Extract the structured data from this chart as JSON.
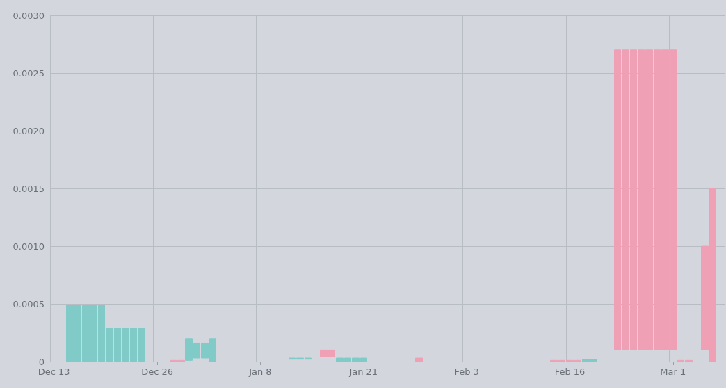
{
  "chart_data": {
    "type": "candlestick",
    "categories": [
      "Dec 13",
      null,
      null,
      null,
      null,
      null,
      null,
      null,
      null,
      null,
      null,
      null,
      null,
      "Dec 26",
      null,
      null,
      null,
      null,
      null,
      null,
      null,
      null,
      null,
      null,
      null,
      null,
      "Jan 8",
      null,
      null,
      null,
      null,
      null,
      null,
      null,
      null,
      null,
      null,
      null,
      null,
      "Jan 21",
      null,
      null,
      null,
      null,
      null,
      null,
      null,
      null,
      null,
      null,
      null,
      null,
      "Feb 3",
      null,
      null,
      null,
      null,
      null,
      null,
      null,
      null,
      null,
      null,
      null,
      null,
      "Feb 16",
      null,
      null,
      null,
      null,
      null,
      null,
      null,
      null,
      null,
      null,
      null,
      null,
      "Mar 1",
      null,
      null,
      null,
      null,
      null,
      null
    ],
    "ohlc": [
      null,
      null,
      [
        0,
        0.00049,
        0,
        0.00049
      ],
      [
        0,
        0.00049,
        0,
        0.00049
      ],
      [
        0,
        0.00049,
        0,
        0.00049
      ],
      [
        0,
        0.00049,
        0,
        0.00049
      ],
      [
        0,
        0.00049,
        0,
        0.00049
      ],
      [
        0,
        0.00029,
        0,
        0.00029
      ],
      [
        0,
        0.00029,
        0,
        0.00029
      ],
      [
        0,
        0.00029,
        0,
        0.00029
      ],
      [
        0,
        0.00029,
        0,
        0.00029
      ],
      [
        0,
        0.00029,
        0,
        0.00029
      ],
      null,
      null,
      null,
      [
        1e-05,
        1e-05,
        0,
        0
      ],
      [
        1e-05,
        1e-05,
        0,
        0
      ],
      [
        1e-05,
        0.0002,
        1e-05,
        0.0002
      ],
      [
        3e-05,
        0.00016,
        3e-05,
        0.00016
      ],
      [
        3e-05,
        0.00016,
        3e-05,
        0.00016
      ],
      [
        0,
        0.0002,
        0,
        0.0002
      ],
      null,
      null,
      null,
      null,
      null,
      null,
      null,
      null,
      null,
      [
        2e-05,
        3e-05,
        2e-05,
        3e-05
      ],
      [
        2e-05,
        3e-05,
        2e-05,
        3e-05
      ],
      [
        2e-05,
        3e-05,
        2e-05,
        3e-05
      ],
      null,
      [
        0.0001,
        0.0001,
        4e-05,
        4e-05
      ],
      [
        0.0001,
        0.0001,
        4e-05,
        4e-05
      ],
      [
        0,
        3e-05,
        0,
        3e-05
      ],
      [
        0,
        3e-05,
        0,
        3e-05
      ],
      [
        0,
        3e-05,
        0,
        3e-05
      ],
      [
        0,
        3e-05,
        0,
        3e-05
      ],
      null,
      null,
      null,
      null,
      null,
      null,
      [
        3e-05,
        3e-05,
        0,
        0
      ],
      null,
      null,
      null,
      null,
      null,
      null,
      null,
      null,
      null,
      null,
      null,
      null,
      null,
      null,
      null,
      null,
      [
        1e-05,
        1e-05,
        0,
        0
      ],
      [
        1e-05,
        1e-05,
        0,
        0
      ],
      [
        1e-05,
        1e-05,
        0,
        0
      ],
      [
        1e-05,
        1e-05,
        0,
        0
      ],
      [
        0,
        2e-05,
        0,
        2e-05
      ],
      [
        0,
        2e-05,
        0,
        2e-05
      ],
      null,
      null,
      [
        0.0027,
        0.0027,
        0.0001,
        0.0001
      ],
      [
        0.0027,
        0.0027,
        0.0001,
        0.0001
      ],
      [
        0.0027,
        0.0027,
        0.0001,
        0.0001
      ],
      [
        0.0027,
        0.0027,
        0.0001,
        0.0001
      ],
      [
        0.0027,
        0.0027,
        0.0001,
        0.0001
      ],
      [
        0.0027,
        0.0027,
        0.0001,
        0.0001
      ],
      [
        0.0027,
        0.0027,
        0.0001,
        0.0001
      ],
      [
        0.0027,
        0.0027,
        0.0001,
        0.0001
      ],
      [
        1e-05,
        1e-05,
        0,
        0
      ],
      [
        1e-05,
        1e-05,
        0,
        0
      ],
      null,
      [
        0.001,
        0.001,
        0.0001,
        0.0001
      ],
      [
        0.0015,
        0.0015,
        0,
        0
      ],
      null
    ],
    "colors": [
      null,
      null,
      "#80cbc8",
      "#80cbc8",
      "#80cbc8",
      "#80cbc8",
      "#80cbc8",
      "#80cbc8",
      "#80cbc8",
      "#80cbc8",
      "#80cbc8",
      "#80cbc8",
      null,
      null,
      null,
      "#f0a0b4",
      "#f0a0b4",
      "#80cbc8",
      "#80cbc8",
      "#80cbc8",
      "#80cbc8",
      null,
      null,
      null,
      null,
      null,
      null,
      null,
      null,
      null,
      "#80cbc8",
      "#80cbc8",
      "#80cbc8",
      null,
      "#f0a0b4",
      "#f0a0b4",
      "#80cbc8",
      "#80cbc8",
      "#80cbc8",
      "#80cbc8",
      null,
      null,
      null,
      null,
      null,
      null,
      "#f0a0b4",
      null,
      null,
      null,
      null,
      null,
      null,
      null,
      null,
      null,
      null,
      null,
      null,
      null,
      null,
      null,
      null,
      "#f0a0b4",
      "#f0a0b4",
      "#f0a0b4",
      "#f0a0b4",
      "#80cbc8",
      "#80cbc8",
      null,
      null,
      "#f0a0b4",
      "#f0a0b4",
      "#f0a0b4",
      "#f0a0b4",
      "#f0a0b4",
      "#f0a0b4",
      "#f0a0b4",
      "#f0a0b4",
      "#f0a0b4",
      "#f0a0b4",
      null,
      "#f0a0b4",
      "#f0a0b4",
      null
    ],
    "ylim": [
      0,
      0.003
    ],
    "yticks": [
      {
        "value": 0,
        "label": "0"
      },
      {
        "value": 0.0005,
        "label": "0.0005"
      },
      {
        "value": 0.001,
        "label": "0.0010"
      },
      {
        "value": 0.0015,
        "label": "0.0015"
      },
      {
        "value": 0.002,
        "label": "0.0020"
      },
      {
        "value": 0.0025,
        "label": "0.0025"
      },
      {
        "value": 0.003,
        "label": "0.0030"
      }
    ],
    "grid": true
  }
}
